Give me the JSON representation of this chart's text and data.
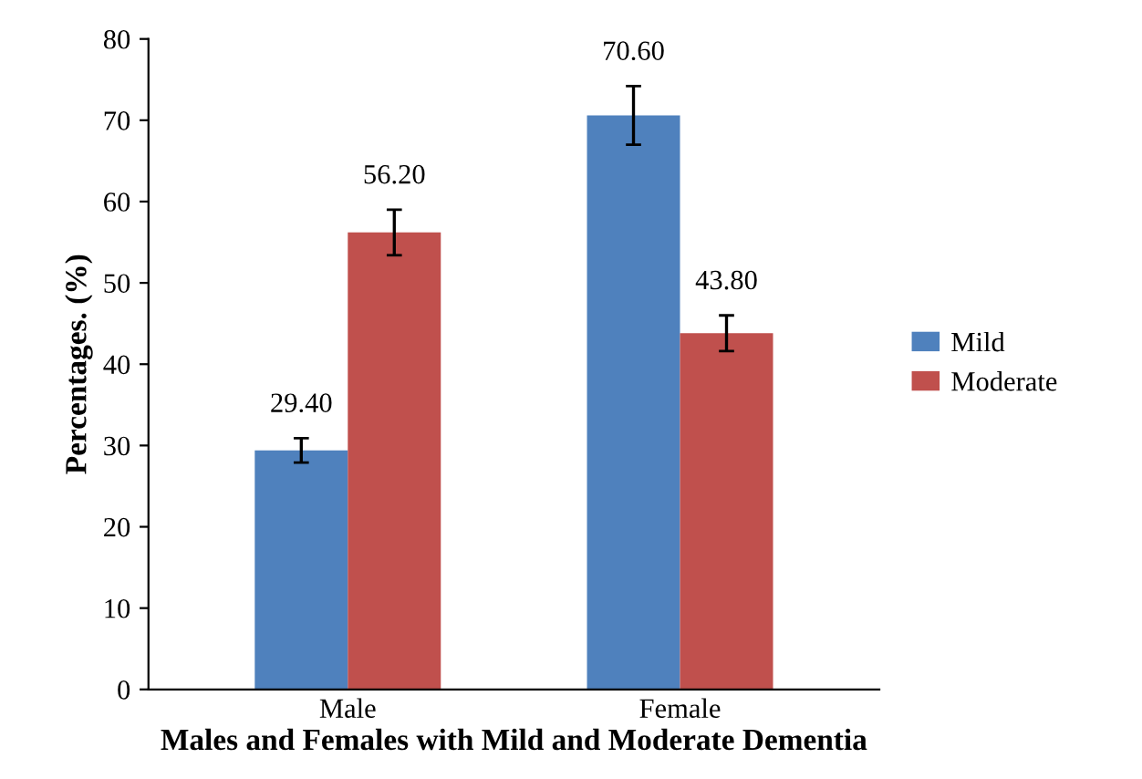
{
  "chart_data": {
    "type": "bar",
    "xlabel": "Males and Females with Mild and Moderate Dementia",
    "ylabel": "Percentages. (%)",
    "categories": [
      "Male",
      "Female"
    ],
    "series": [
      {
        "name": "Mild",
        "color": "#4f81bd",
        "values": [
          29.4,
          70.6
        ],
        "errors": [
          1.5,
          3.6
        ],
        "value_labels": [
          "29.40",
          "70.60"
        ]
      },
      {
        "name": "Moderate",
        "color": "#c0504d",
        "values": [
          56.2,
          43.8
        ],
        "errors": [
          2.8,
          2.2
        ],
        "value_labels": [
          "56.20",
          "43.80"
        ]
      }
    ],
    "ylim": [
      0,
      80
    ],
    "yticks": [
      0,
      10,
      20,
      30,
      40,
      50,
      60,
      70,
      80
    ],
    "grid": false,
    "legend": "right"
  }
}
